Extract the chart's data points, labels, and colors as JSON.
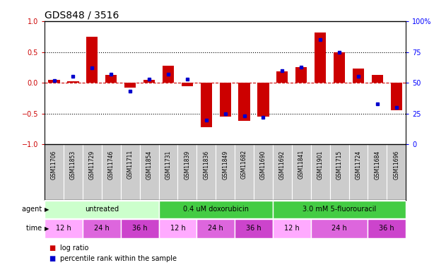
{
  "title": "GDS848 / 3516",
  "samples": [
    "GSM11706",
    "GSM11853",
    "GSM11729",
    "GSM11746",
    "GSM11711",
    "GSM11854",
    "GSM11731",
    "GSM11839",
    "GSM11836",
    "GSM11849",
    "GSM11682",
    "GSM11690",
    "GSM11692",
    "GSM11841",
    "GSM11901",
    "GSM11715",
    "GSM11724",
    "GSM11684",
    "GSM11696"
  ],
  "log_ratio": [
    0.05,
    0.03,
    0.75,
    0.13,
    -0.08,
    0.05,
    0.28,
    -0.05,
    -0.72,
    -0.55,
    -0.62,
    -0.55,
    0.18,
    0.25,
    0.82,
    0.5,
    0.23,
    0.13,
    -0.45
  ],
  "percentile": [
    52,
    55,
    62,
    57,
    43,
    53,
    57,
    53,
    20,
    25,
    23,
    22,
    60,
    63,
    85,
    75,
    55,
    33,
    30
  ],
  "ylim_left": [
    -1,
    1
  ],
  "ylim_right": [
    0,
    100
  ],
  "yticks_left": [
    -1,
    -0.5,
    0,
    0.5,
    1
  ],
  "yticks_right": [
    0,
    25,
    50,
    75,
    100
  ],
  "bar_color": "#cc0000",
  "dot_color": "#0000cc",
  "agent_groups": [
    {
      "label": "untreated",
      "start": 0,
      "end": 6,
      "color": "#ccffcc"
    },
    {
      "label": "0.4 uM doxorubicin",
      "start": 6,
      "end": 12,
      "color": "#44cc44"
    },
    {
      "label": "3.0 mM 5-fluorouracil",
      "start": 12,
      "end": 19,
      "color": "#44cc44"
    }
  ],
  "time_groups": [
    {
      "label": "12 h",
      "start": 0,
      "end": 2,
      "color": "#ffaaff"
    },
    {
      "label": "24 h",
      "start": 2,
      "end": 4,
      "color": "#dd66dd"
    },
    {
      "label": "36 h",
      "start": 4,
      "end": 6,
      "color": "#cc44cc"
    },
    {
      "label": "12 h",
      "start": 6,
      "end": 8,
      "color": "#ffaaff"
    },
    {
      "label": "24 h",
      "start": 8,
      "end": 10,
      "color": "#dd66dd"
    },
    {
      "label": "36 h",
      "start": 10,
      "end": 12,
      "color": "#cc44cc"
    },
    {
      "label": "12 h",
      "start": 12,
      "end": 14,
      "color": "#ffaaff"
    },
    {
      "label": "24 h",
      "start": 14,
      "end": 17,
      "color": "#dd66dd"
    },
    {
      "label": "36 h",
      "start": 17,
      "end": 19,
      "color": "#cc44cc"
    }
  ],
  "legend_bar_label": "log ratio",
  "legend_dot_label": "percentile rank within the sample",
  "sample_bg": "#cccccc",
  "sample_border": "#888888"
}
